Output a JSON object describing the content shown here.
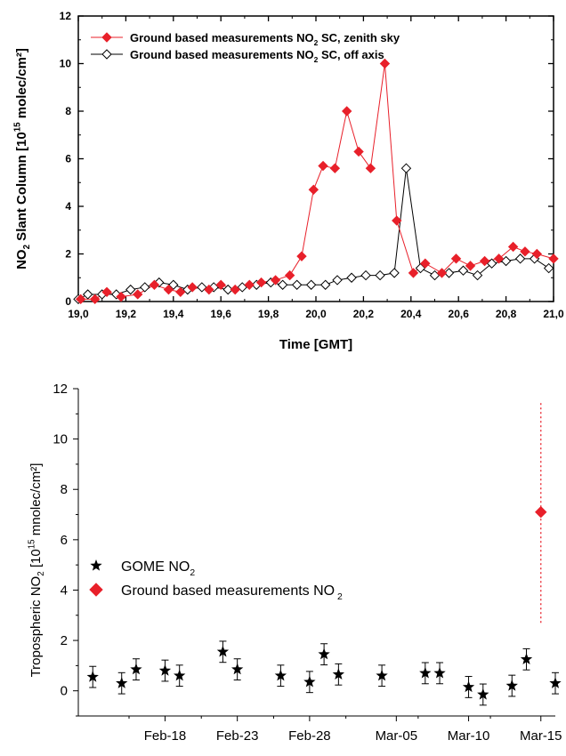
{
  "chart_data": [
    {
      "type": "line",
      "xlabel": "Time [GMT]",
      "ylabel": "NO2 Slant Column [10^15 molec/cm²]",
      "ylabel_parts": [
        "NO",
        "2",
        " Slant Column [10",
        "15",
        " molec/cm²]"
      ],
      "xlim": [
        19.0,
        21.0
      ],
      "ylim": [
        0,
        12
      ],
      "x_ticks": [
        "19,0",
        "19,2",
        "19,4",
        "19,6",
        "19,8",
        "20,0",
        "20,2",
        "20,4",
        "20,6",
        "20,8",
        "21,0"
      ],
      "y_ticks": [
        "0",
        "2",
        "4",
        "6",
        "8",
        "10",
        "12"
      ],
      "legend_position": "top-left",
      "series": [
        {
          "name": "Ground based measurements NO2 SC, zenith sky",
          "name_parts": [
            "Ground based measurements NO",
            "2",
            " SC, zenith sky"
          ],
          "marker": "filled-diamond",
          "color": "#e8202a",
          "x": [
            19.01,
            19.07,
            19.12,
            19.18,
            19.25,
            19.32,
            19.38,
            19.43,
            19.48,
            19.55,
            19.6,
            19.66,
            19.72,
            19.77,
            19.83,
            19.89,
            19.94,
            19.99,
            20.03,
            20.08,
            20.13,
            20.18,
            20.23,
            20.29,
            20.34,
            20.41,
            20.46,
            20.53,
            20.59,
            20.65,
            20.71,
            20.77,
            20.83,
            20.88,
            20.93,
            21.0
          ],
          "y": [
            0.1,
            0.1,
            0.4,
            0.2,
            0.3,
            0.7,
            0.5,
            0.4,
            0.6,
            0.5,
            0.7,
            0.5,
            0.7,
            0.8,
            0.9,
            1.1,
            1.9,
            4.7,
            5.7,
            5.6,
            8.0,
            6.3,
            5.6,
            10.0,
            3.4,
            1.2,
            1.6,
            1.2,
            1.8,
            1.5,
            1.7,
            1.8,
            2.3,
            2.1,
            2.0,
            1.8
          ]
        },
        {
          "name": "Ground based measurements NO2 SC, off axis",
          "name_parts": [
            "Ground based measurements NO",
            "2",
            " SC, off axis"
          ],
          "marker": "open-diamond",
          "color": "#000000",
          "x": [
            19.0,
            19.04,
            19.1,
            19.16,
            19.22,
            19.28,
            19.34,
            19.4,
            19.46,
            19.52,
            19.57,
            19.63,
            19.69,
            19.75,
            19.81,
            19.86,
            19.92,
            19.98,
            20.04,
            20.09,
            20.15,
            20.21,
            20.27,
            20.33,
            20.38,
            20.44,
            20.5,
            20.56,
            20.62,
            20.68,
            20.74,
            20.8,
            20.86,
            20.92,
            20.98
          ],
          "y": [
            0.1,
            0.3,
            0.3,
            0.3,
            0.5,
            0.6,
            0.8,
            0.7,
            0.5,
            0.6,
            0.6,
            0.5,
            0.6,
            0.7,
            0.8,
            0.7,
            0.7,
            0.7,
            0.7,
            0.9,
            1.0,
            1.1,
            1.1,
            1.2,
            5.6,
            1.4,
            1.1,
            1.2,
            1.3,
            1.1,
            1.6,
            1.7,
            1.8,
            1.8,
            1.4
          ]
        }
      ]
    },
    {
      "type": "scatter",
      "xlabel": "",
      "ylabel": "Tropospheric NO2 [10^15 mnolec/cm²]",
      "ylabel_parts": [
        "Tropospheric NO",
        "2",
        " [10",
        "15",
        " mnolec/cm²]"
      ],
      "x_unit": "date",
      "xlim": [
        "2000-02-12",
        "2000-03-16"
      ],
      "ylim": [
        -1,
        12
      ],
      "x_ticks": [
        {
          "label": "Feb-18",
          "date": "2000-02-18"
        },
        {
          "label": "Feb-23",
          "date": "2000-02-23"
        },
        {
          "label": "Feb-28",
          "date": "2000-02-28"
        },
        {
          "label": "Mar-05",
          "date": "2000-03-05"
        },
        {
          "label": "Mar-10",
          "date": "2000-03-10"
        },
        {
          "label": "Mar-15",
          "date": "2000-03-15"
        }
      ],
      "y_ticks": [
        "0",
        "2",
        "4",
        "6",
        "8",
        "10",
        "12"
      ],
      "legend_position": "center-left",
      "series": [
        {
          "name": "GOME NO2",
          "name_parts": [
            "GOME NO",
            "2"
          ],
          "marker": "star",
          "color": "#000000",
          "x": [
            "2000-02-13",
            "2000-02-15",
            "2000-02-16",
            "2000-02-18",
            "2000-02-19",
            "2000-02-22",
            "2000-02-23",
            "2000-02-26",
            "2000-02-28",
            "2000-02-29",
            "2000-03-01",
            "2000-03-04",
            "2000-03-07",
            "2000-03-08",
            "2000-03-10",
            "2000-03-11",
            "2000-03-13",
            "2000-03-14",
            "2000-03-16"
          ],
          "y": [
            0.55,
            0.3,
            0.85,
            0.8,
            0.6,
            1.55,
            0.85,
            0.6,
            0.35,
            1.45,
            0.65,
            0.6,
            0.7,
            0.7,
            0.15,
            -0.15,
            0.2,
            1.25,
            0.3
          ],
          "err": [
            0.42,
            0.42,
            0.42,
            0.42,
            0.42,
            0.42,
            0.42,
            0.42,
            0.42,
            0.42,
            0.42,
            0.42,
            0.42,
            0.42,
            0.42,
            0.42,
            0.42,
            0.42,
            0.42
          ]
        },
        {
          "name": "Ground based measurements NO2",
          "name_parts": [
            "Ground based measurements NO",
            " 2"
          ],
          "marker": "filled-diamond",
          "color": "#e8202a",
          "x": [
            "2000-03-15"
          ],
          "y": [
            7.1
          ],
          "range_low": [
            2.7
          ],
          "range_high": [
            11.5
          ]
        }
      ]
    }
  ]
}
